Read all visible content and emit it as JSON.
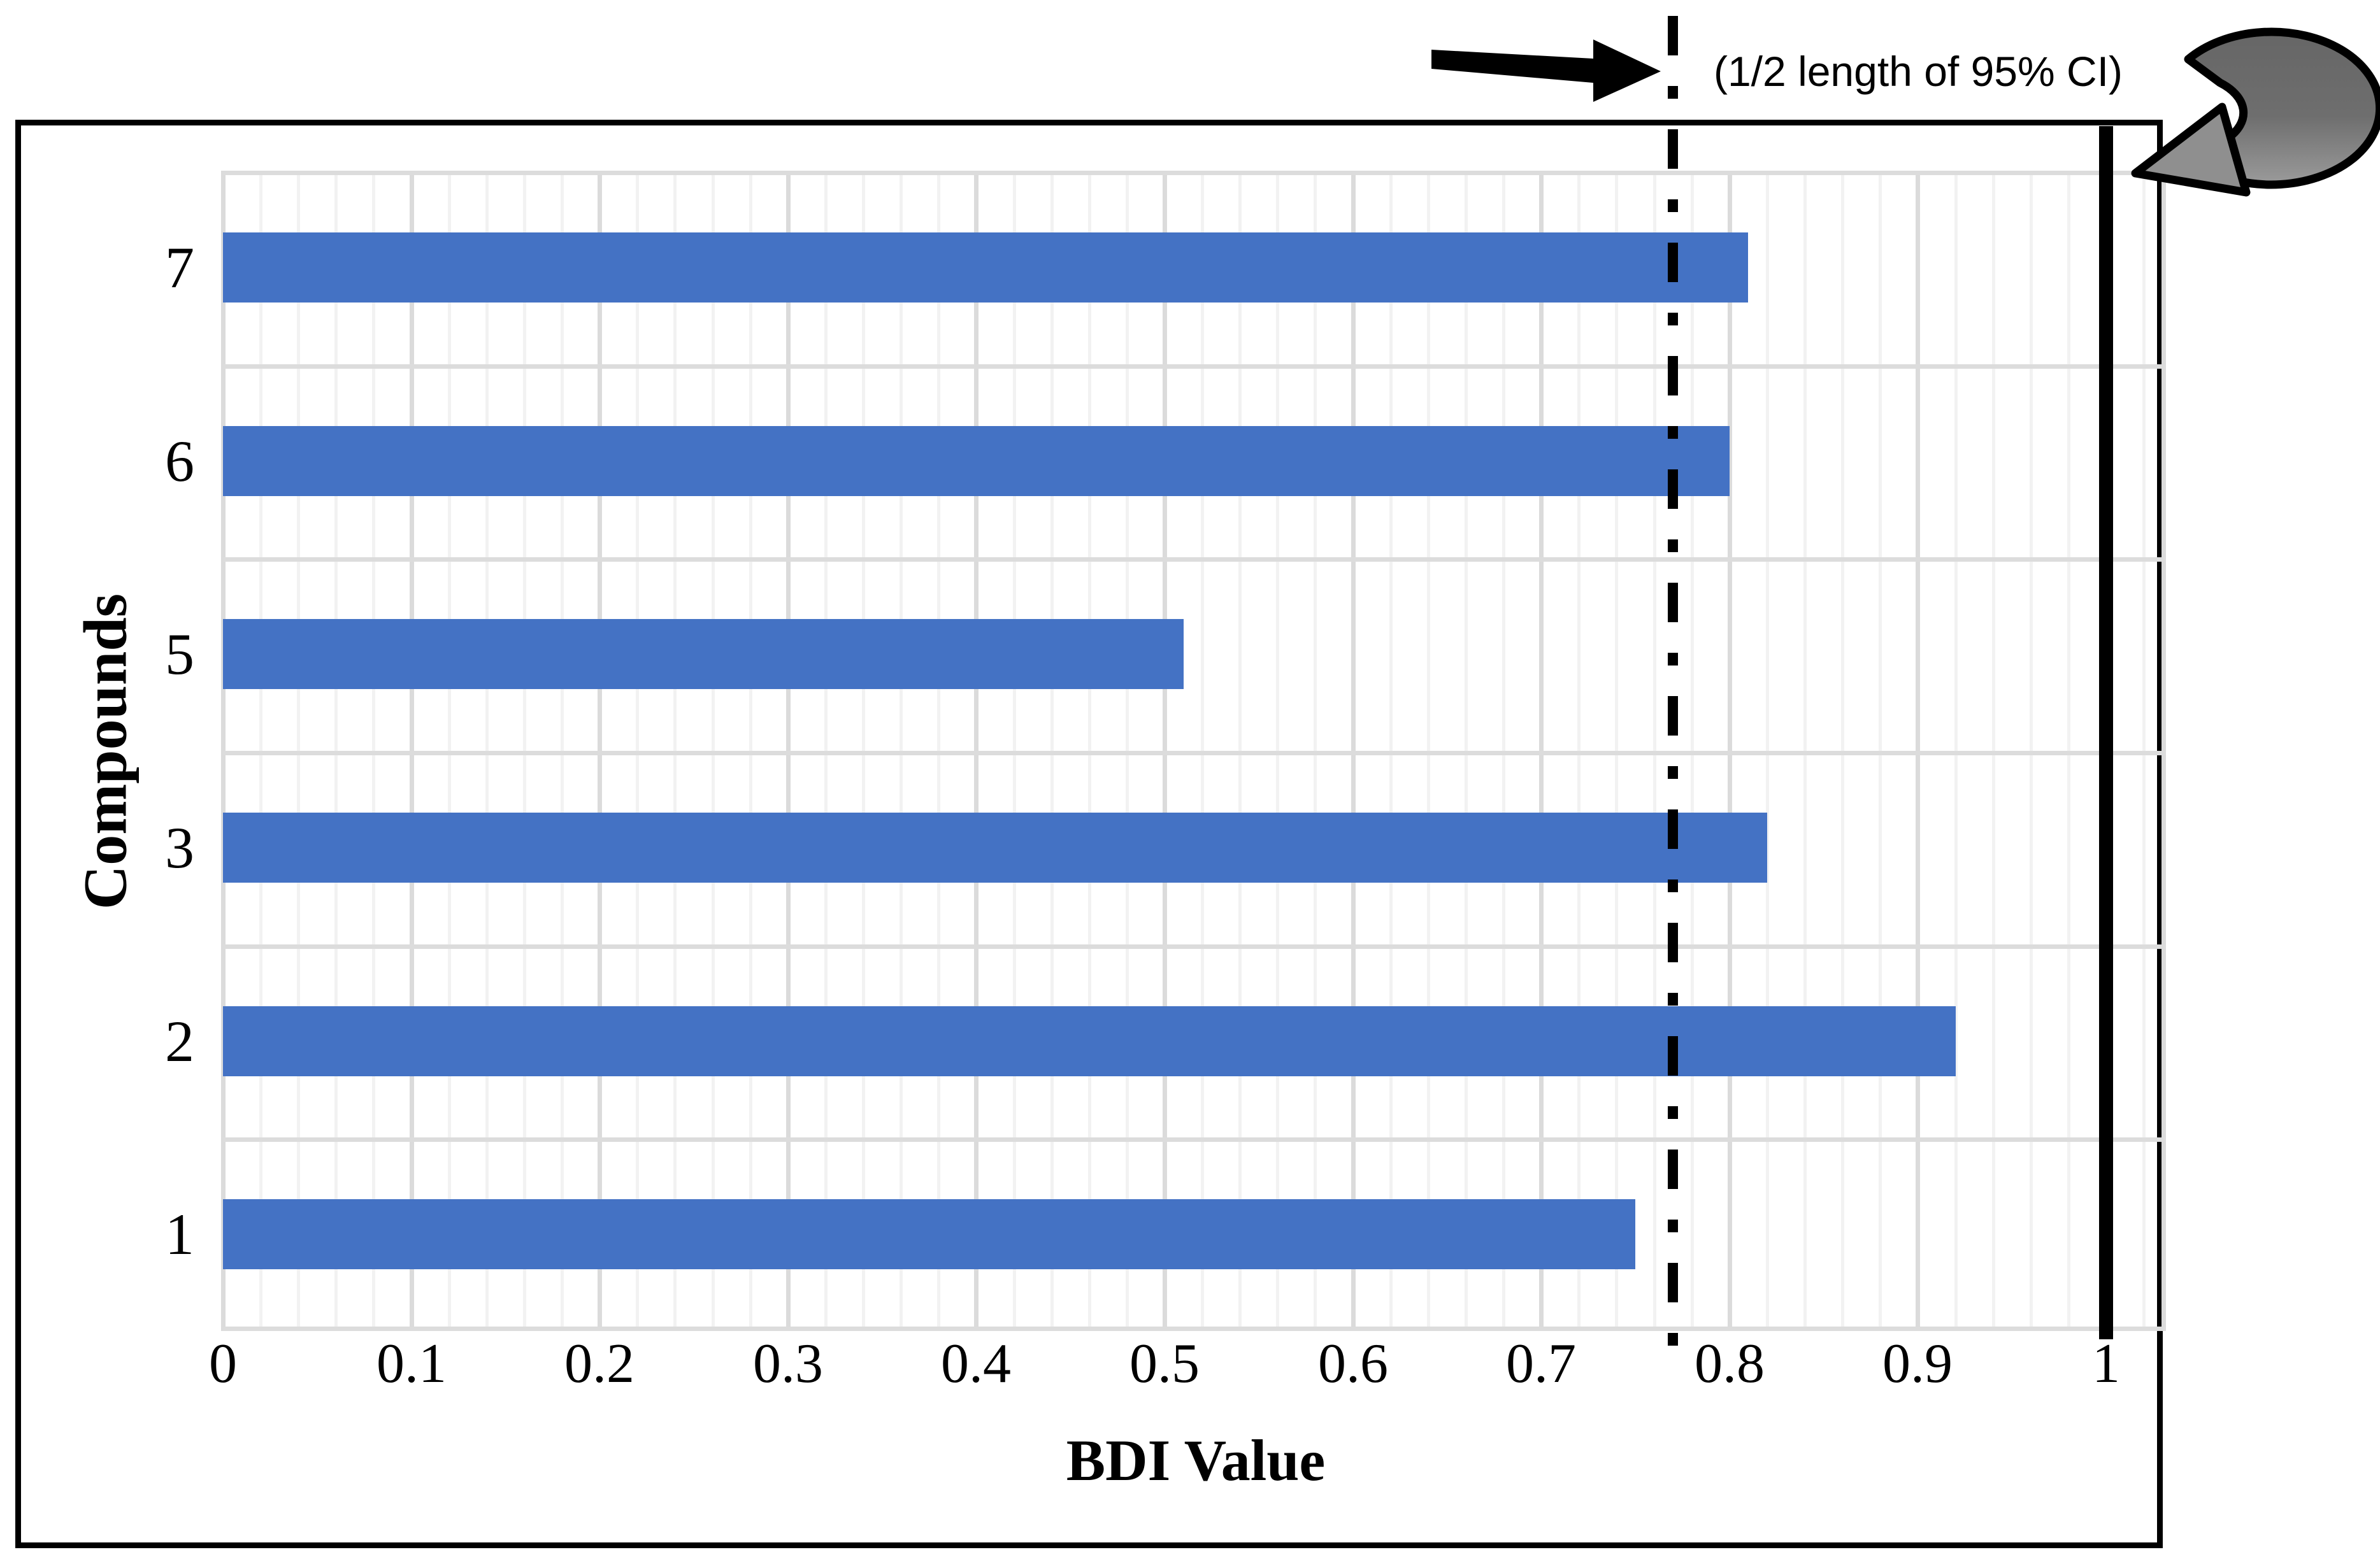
{
  "chart_data": {
    "type": "bar",
    "orientation": "horizontal",
    "title": "",
    "xlabel": "BDI Value",
    "ylabel": "Compounds",
    "categories": [
      "7",
      "6",
      "5",
      "3",
      "2",
      "1"
    ],
    "values": [
      0.81,
      0.8,
      0.51,
      0.82,
      0.92,
      0.75
    ],
    "xlim": [
      0,
      1.03
    ],
    "x_tick_labels": [
      "0",
      "0.1",
      "0.2",
      "0.3",
      "0.4",
      "0.5",
      "0.6",
      "0.7",
      "0.8",
      "0.9",
      "1"
    ],
    "x_minor_step": 0.02,
    "grid": "on",
    "legend": "none",
    "bar_color": "#4472C4",
    "reference_lines": [
      {
        "name": "dash-dot-threshold",
        "value": 0.77,
        "style": "dash-dot",
        "color": "#000000"
      },
      {
        "name": "solid-line-at-one",
        "value": 1.0,
        "style": "solid",
        "color": "#000000"
      }
    ]
  },
  "annotation": {
    "label": "(1/2 length of 95% CI)"
  },
  "icons": {
    "straight_arrow": "black-right-arrow",
    "curved_arrow": "gray-curved-loop-arrow"
  },
  "colors": {
    "bar": "#4472C4",
    "minor_grid": "#F2F2F2",
    "major_grid": "#DBDBDB",
    "row_line": "#DCDCDC",
    "curved_arrow_dark": "#666666",
    "curved_arrow_light": "#9B9B9B",
    "figure_border": "#000000",
    "background": "#FFFFFF"
  }
}
